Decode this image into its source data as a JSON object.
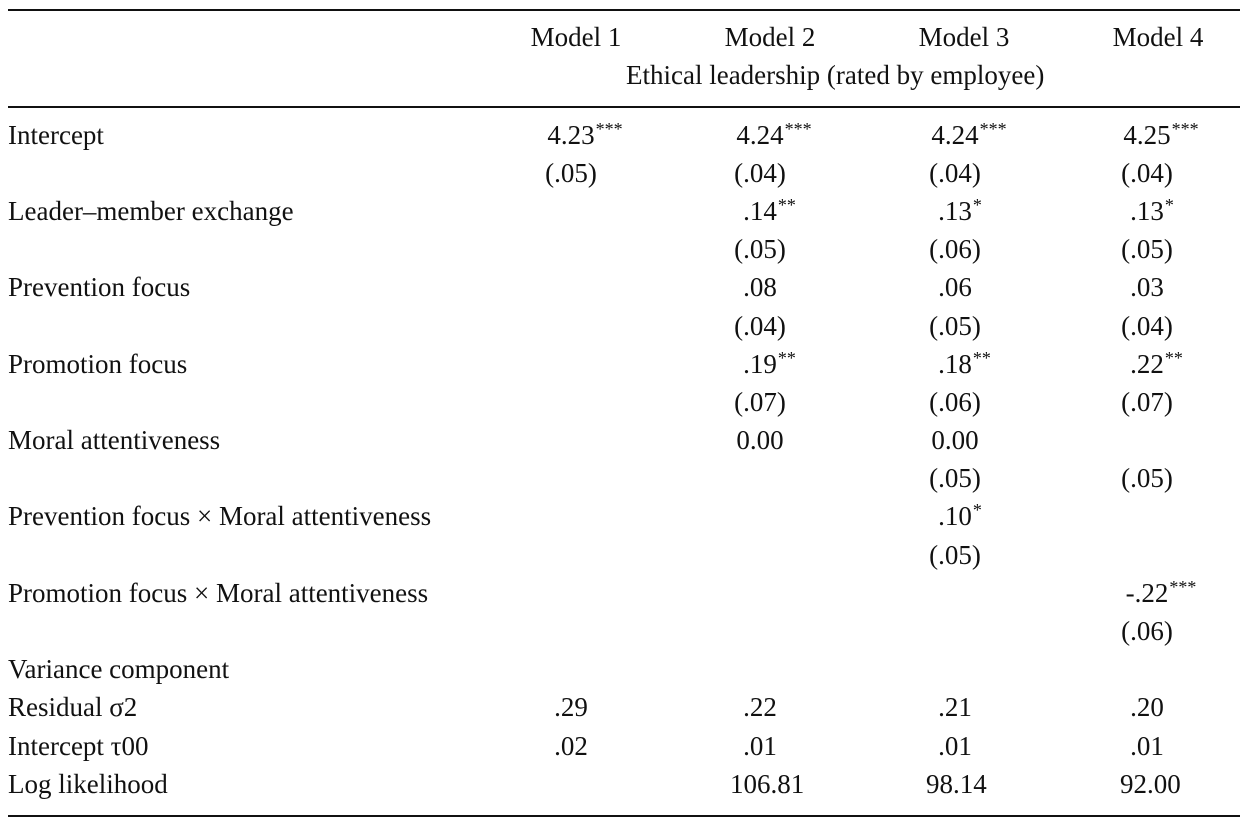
{
  "header": {
    "models": [
      "Model 1",
      "Model 2",
      "Model 3",
      "Model 4"
    ],
    "subheader": "Ethical leadership (rated by employee)"
  },
  "rows": [
    {
      "label": "Intercept",
      "cells": [
        {
          "v": "4.23",
          "s": "***"
        },
        {
          "v": "4.24",
          "s": "***"
        },
        {
          "v": "4.24",
          "s": "***"
        },
        {
          "v": "4.25",
          "s": "***"
        }
      ]
    },
    {
      "label": "",
      "cells": [
        {
          "v": "(.05)",
          "s": ""
        },
        {
          "v": "(.04)",
          "s": ""
        },
        {
          "v": "(.04)",
          "s": ""
        },
        {
          "v": "(.04)",
          "s": ""
        }
      ]
    },
    {
      "label": "Leader–member exchange",
      "cells": [
        {
          "v": "",
          "s": ""
        },
        {
          "v": ".14",
          "s": "**"
        },
        {
          "v": ".13",
          "s": "*"
        },
        {
          "v": ".13",
          "s": "*"
        }
      ]
    },
    {
      "label": "",
      "cells": [
        {
          "v": "",
          "s": ""
        },
        {
          "v": "(.05)",
          "s": ""
        },
        {
          "v": "(.06)",
          "s": ""
        },
        {
          "v": "(.05)",
          "s": ""
        }
      ]
    },
    {
      "label": "Prevention focus",
      "cells": [
        {
          "v": "",
          "s": ""
        },
        {
          "v": ".08",
          "s": ""
        },
        {
          "v": ".06",
          "s": ""
        },
        {
          "v": ".03",
          "s": ""
        }
      ]
    },
    {
      "label": "",
      "cells": [
        {
          "v": "",
          "s": ""
        },
        {
          "v": "(.04)",
          "s": ""
        },
        {
          "v": "(.05)",
          "s": ""
        },
        {
          "v": "(.04)",
          "s": ""
        }
      ]
    },
    {
      "label": "Promotion focus",
      "cells": [
        {
          "v": "",
          "s": ""
        },
        {
          "v": ".19",
          "s": "**"
        },
        {
          "v": ".18",
          "s": "**"
        },
        {
          "v": ".22",
          "s": "**"
        }
      ]
    },
    {
      "label": "",
      "cells": [
        {
          "v": "",
          "s": ""
        },
        {
          "v": "(.07)",
          "s": ""
        },
        {
          "v": "(.06)",
          "s": ""
        },
        {
          "v": "(.07)",
          "s": ""
        }
      ]
    },
    {
      "label": "Moral attentiveness",
      "cells": [
        {
          "v": "",
          "s": ""
        },
        {
          "v": "0.00",
          "s": ""
        },
        {
          "v": "0.00",
          "s": ""
        },
        {
          "v": "",
          "s": ""
        }
      ]
    },
    {
      "label": "",
      "cells": [
        {
          "v": "",
          "s": ""
        },
        {
          "v": "",
          "s": ""
        },
        {
          "v": "(.05)",
          "s": ""
        },
        {
          "v": "(.05)",
          "s": ""
        }
      ]
    },
    {
      "label": "Prevention focus × Moral attentiveness",
      "cells": [
        {
          "v": "",
          "s": ""
        },
        {
          "v": "",
          "s": ""
        },
        {
          "v": ".10",
          "s": "*"
        },
        {
          "v": "",
          "s": ""
        }
      ]
    },
    {
      "label": "",
      "cells": [
        {
          "v": "",
          "s": ""
        },
        {
          "v": "",
          "s": ""
        },
        {
          "v": "(.05)",
          "s": ""
        },
        {
          "v": "",
          "s": ""
        }
      ]
    },
    {
      "label": "Promotion focus × Moral attentiveness",
      "cells": [
        {
          "v": "",
          "s": ""
        },
        {
          "v": "",
          "s": ""
        },
        {
          "v": "",
          "s": ""
        },
        {
          "v": "-.22",
          "s": "***"
        }
      ]
    },
    {
      "label": "",
      "cells": [
        {
          "v": "",
          "s": ""
        },
        {
          "v": "",
          "s": ""
        },
        {
          "v": "",
          "s": ""
        },
        {
          "v": "(.06)",
          "s": ""
        }
      ]
    },
    {
      "label": "Variance component",
      "cells": [
        {
          "v": "",
          "s": ""
        },
        {
          "v": "",
          "s": ""
        },
        {
          "v": "",
          "s": ""
        },
        {
          "v": "",
          "s": ""
        }
      ]
    },
    {
      "label": "Residual σ2",
      "cells": [
        {
          "v": ".29",
          "s": ""
        },
        {
          "v": ".22",
          "s": ""
        },
        {
          "v": ".21",
          "s": ""
        },
        {
          "v": ".20",
          "s": ""
        }
      ]
    },
    {
      "label": "Intercept τ00",
      "cells": [
        {
          "v": ".02",
          "s": ""
        },
        {
          "v": ".01",
          "s": ""
        },
        {
          "v": ".01",
          "s": ""
        },
        {
          "v": ".01",
          "s": ""
        }
      ]
    },
    {
      "label": "Log likelihood",
      "cells": [
        {
          "v": "",
          "s": ""
        },
        {
          "v": "106.81",
          "s": ""
        },
        {
          "v": "98.14",
          "s": ""
        },
        {
          "v": "92.00",
          "s": ""
        }
      ]
    }
  ]
}
